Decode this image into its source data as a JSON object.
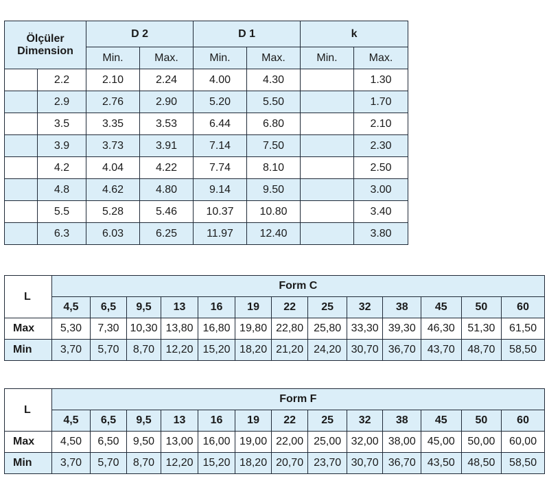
{
  "table1": {
    "dimension_label_line1": "Ölçüler",
    "dimension_label_line2": "Dimension",
    "groups": [
      "D 2",
      "D 1",
      "k"
    ],
    "sub_headers": [
      "Min.",
      "Max.",
      "Min.",
      "Max.",
      "Min.",
      "Max."
    ],
    "rows": [
      {
        "dim": "2.2",
        "d2min": "2.10",
        "d2max": "2.24",
        "d1min": "4.00",
        "d1max": "4.30",
        "kmin": "",
        "kmax": "1.30"
      },
      {
        "dim": "2.9",
        "d2min": "2.76",
        "d2max": "2.90",
        "d1min": "5.20",
        "d1max": "5.50",
        "kmin": "",
        "kmax": "1.70"
      },
      {
        "dim": "3.5",
        "d2min": "3.35",
        "d2max": "3.53",
        "d1min": "6.44",
        "d1max": "6.80",
        "kmin": "",
        "kmax": "2.10"
      },
      {
        "dim": "3.9",
        "d2min": "3.73",
        "d2max": "3.91",
        "d1min": "7.14",
        "d1max": "7.50",
        "kmin": "",
        "kmax": "2.30"
      },
      {
        "dim": "4.2",
        "d2min": "4.04",
        "d2max": "4.22",
        "d1min": "7.74",
        "d1max": "8.10",
        "kmin": "",
        "kmax": "2.50"
      },
      {
        "dim": "4.8",
        "d2min": "4.62",
        "d2max": "4.80",
        "d1min": "9.14",
        "d1max": "9.50",
        "kmin": "",
        "kmax": "3.00"
      },
      {
        "dim": "5.5",
        "d2min": "5.28",
        "d2max": "5.46",
        "d1min": "10.37",
        "d1max": "10.80",
        "kmin": "",
        "kmax": "3.40"
      },
      {
        "dim": "6.3",
        "d2min": "6.03",
        "d2max": "6.25",
        "d1min": "11.97",
        "d1max": "12.40",
        "kmin": "",
        "kmax": "3.80"
      }
    ]
  },
  "table2": {
    "l_label": "L",
    "form_label": "Form C",
    "lengths": [
      "4,5",
      "6,5",
      "9,5",
      "13",
      "16",
      "19",
      "22",
      "25",
      "32",
      "38",
      "45",
      "50",
      "60"
    ],
    "max_label": "Max",
    "min_label": "Min",
    "max": [
      "5,30",
      "7,30",
      "10,30",
      "13,80",
      "16,80",
      "19,80",
      "22,80",
      "25,80",
      "33,30",
      "39,30",
      "46,30",
      "51,30",
      "61,50"
    ],
    "min": [
      "3,70",
      "5,70",
      "8,70",
      "12,20",
      "15,20",
      "18,20",
      "21,20",
      "24,20",
      "30,70",
      "36,70",
      "43,70",
      "48,70",
      "58,50"
    ]
  },
  "table3": {
    "l_label": "L",
    "form_label": "Form F",
    "lengths": [
      "4,5",
      "6,5",
      "9,5",
      "13",
      "16",
      "19",
      "22",
      "25",
      "32",
      "38",
      "45",
      "50",
      "60"
    ],
    "max_label": "Max",
    "min_label": "Min",
    "max": [
      "4,50",
      "6,50",
      "9,50",
      "13,00",
      "16,00",
      "19,00",
      "22,00",
      "25,00",
      "32,00",
      "38,00",
      "45,00",
      "50,00",
      "60,00"
    ],
    "min": [
      "3,70",
      "5,70",
      "8,70",
      "12,20",
      "15,20",
      "18,20",
      "20,70",
      "23,70",
      "30,70",
      "36,70",
      "43,50",
      "48,50",
      "58,50"
    ]
  },
  "colors": {
    "header_fill": "#dbeef8",
    "border": "#1f2937"
  }
}
